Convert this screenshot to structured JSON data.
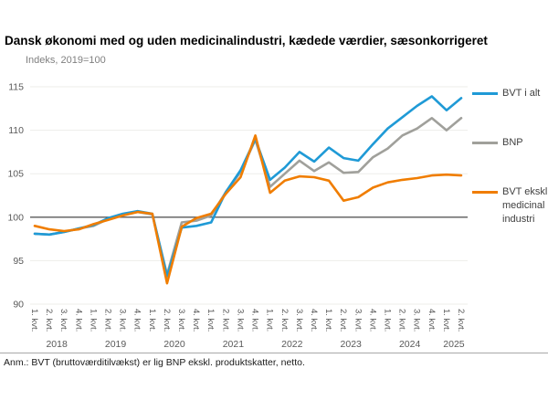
{
  "title": "Dansk økonomi med og uden medicinalindustri, kædede værdier, sæsonkorrigeret",
  "y_axis_unit": "Indeks, 2019=100",
  "note": "Anm.: BVT (bruttoværditilvækst) er lig BNP ekskl. produktskatter, netto.",
  "colors": {
    "bvt_total": "#1f9ad6",
    "bnp": "#a0a09b",
    "bvt_excl": "#f07d00",
    "gridline": "#ededea",
    "baseline": "#595959",
    "axis_text": "#595959"
  },
  "legend": [
    {
      "label": "BVT i alt",
      "color": "#1f9ad6"
    },
    {
      "label": "BNP",
      "color": "#a0a09b"
    },
    {
      "label": "BVT ekskl. medicinal industri",
      "color": "#f07d00"
    }
  ],
  "chart_data": {
    "type": "line",
    "x": [
      "1. kvt.",
      "2. kvt.",
      "3. kvt.",
      "4. kvt.",
      "1. kvt.",
      "2. kvt.",
      "3. kvt.",
      "4. kvt.",
      "1. kvt.",
      "2. kvt.",
      "3. kvt.",
      "4. kvt.",
      "1. kvt.",
      "2. kvt.",
      "3. kvt.",
      "4. kvt.",
      "1. kvt.",
      "2. kvt.",
      "3. kvt.",
      "4. kvt.",
      "1. kvt.",
      "2. kvt.",
      "3. kvt.",
      "4. kvt.",
      "1. kvt.",
      "2. kvt.",
      "3. kvt.",
      "4. kvt.",
      "1. kvt.",
      "2. kvt."
    ],
    "years": [
      {
        "label": "2018",
        "quarters": 4
      },
      {
        "label": "2019",
        "quarters": 4
      },
      {
        "label": "2020",
        "quarters": 4
      },
      {
        "label": "2021",
        "quarters": 4
      },
      {
        "label": "2022",
        "quarters": 4
      },
      {
        "label": "2023",
        "quarters": 4
      },
      {
        "label": "2024",
        "quarters": 4
      },
      {
        "label": "2025",
        "quarters": 2
      }
    ],
    "y_ticks": [
      90,
      95,
      100,
      105,
      110,
      115
    ],
    "ylim": [
      90,
      115
    ],
    "baseline": 100,
    "grid": true,
    "legend_position": "right",
    "series": [
      {
        "name": "BNP",
        "color": "#a0a09b",
        "values": [
          98.1,
          98.0,
          98.3,
          98.7,
          99.0,
          99.8,
          100.3,
          100.6,
          100.3,
          93.4,
          99.4,
          99.6,
          100.2,
          102.9,
          105.2,
          108.9,
          103.5,
          105.0,
          106.5,
          105.3,
          106.3,
          105.1,
          105.2,
          106.9,
          107.9,
          109.4,
          110.2,
          111.4,
          110.0,
          111.4
        ]
      },
      {
        "name": "BVT i alt",
        "color": "#1f9ad6",
        "values": [
          98.1,
          98.0,
          98.3,
          98.7,
          99.1,
          99.9,
          100.4,
          100.7,
          100.4,
          93.2,
          98.8,
          99.0,
          99.4,
          102.9,
          105.4,
          109.0,
          104.3,
          105.7,
          107.5,
          106.4,
          108.0,
          106.8,
          106.5,
          108.4,
          110.2,
          111.5,
          112.8,
          113.9,
          112.3,
          113.7
        ]
      },
      {
        "name": "BVT ekskl. medicinalindustri",
        "color": "#f07d00",
        "values": [
          99.0,
          98.6,
          98.4,
          98.6,
          99.2,
          99.7,
          100.2,
          100.6,
          100.4,
          92.4,
          98.9,
          99.9,
          100.4,
          102.7,
          104.6,
          109.4,
          102.8,
          104.2,
          104.7,
          104.6,
          104.2,
          101.9,
          102.3,
          103.4,
          104.0,
          104.3,
          104.5,
          104.8,
          104.9,
          104.8
        ]
      }
    ]
  }
}
